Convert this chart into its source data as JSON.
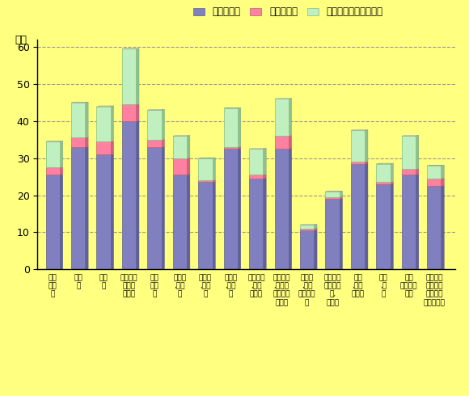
{
  "categories": [
    "調査\n産業\n計",
    "建設\n業",
    "製造\n業",
    "熱供給・\nガス・\n水道業",
    "情報\n通信\n業",
    "運輸業\n,郵便\n業",
    "卸売業\n,小売\n業",
    "金融業\n,保険\n業",
    "不動産業\n,物品\n賃貸業",
    "学術研究\n,専門・\n技術サー\nビス業",
    "宿泊業\n,飲食\nサービス\n業",
    "生活関連\nサービス\n業,\n娯楽業",
    "教育\n,学習\n支援業",
    "医療\n,福\n祉",
    "複合\nサービス\n事業",
    "サービス\n業（他に\n分類され\nないもの）"
  ],
  "values_naiteikyu": [
    25.5,
    33.0,
    31.0,
    40.0,
    33.0,
    25.5,
    23.5,
    32.5,
    24.5,
    32.5,
    10.5,
    19.0,
    28.5,
    23.0,
    25.5,
    22.5
  ],
  "values_shoteiganai": [
    2.0,
    2.5,
    3.5,
    4.5,
    2.0,
    4.5,
    0.5,
    0.5,
    1.0,
    3.5,
    0.5,
    0.5,
    0.5,
    0.5,
    1.5,
    2.0
  ],
  "values_tokubetsu": [
    7.0,
    9.5,
    9.5,
    15.0,
    8.0,
    6.0,
    6.0,
    10.5,
    7.0,
    10.0,
    1.0,
    1.5,
    8.5,
    5.0,
    9.0,
    3.5
  ],
  "color_naiteikyu": "#8080C0",
  "color_shoteiganai": "#FF80A0",
  "color_tokubetsu": "#C0F0C0",
  "legend_labels": [
    "所定内給与",
    "所定外給与",
    "特別に支払われた給与"
  ],
  "ylabel": "万円",
  "ylim": [
    0,
    62
  ],
  "yticks": [
    0,
    10,
    20,
    30,
    40,
    50,
    60
  ],
  "background_color": "#FFFF80",
  "plot_area_color": "#FFFFF0",
  "title_fontsize": 10,
  "axis_fontsize": 8
}
